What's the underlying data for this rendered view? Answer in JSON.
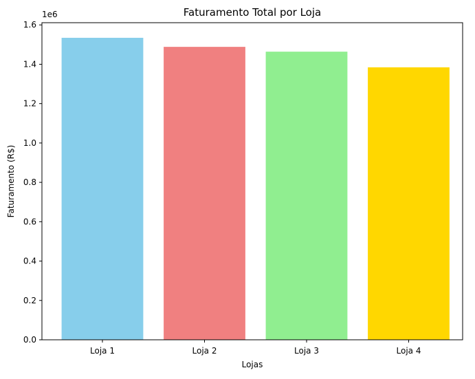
{
  "chart_data": {
    "type": "bar",
    "title": "Faturamento Total por Loja",
    "xlabel": "Lojas",
    "ylabel": "Faturamento (R$)",
    "y_offset_label": "1e6",
    "categories": [
      "Loja 1",
      "Loja 2",
      "Loja 3",
      "Loja 4"
    ],
    "values": [
      1534510,
      1488459,
      1464025,
      1384498
    ],
    "colors": [
      "#87ceeb",
      "#f08080",
      "#90ee90",
      "#ffd700"
    ],
    "ylim": [
      0,
      1611236
    ],
    "yticks": [
      0,
      200000,
      400000,
      600000,
      800000,
      1000000,
      1200000,
      1400000,
      1600000
    ],
    "ytick_labels": [
      "0.0",
      "0.2",
      "0.4",
      "0.6",
      "0.8",
      "1.0",
      "1.2",
      "1.4",
      "1.6"
    ],
    "grid": false,
    "legend": "none"
  }
}
